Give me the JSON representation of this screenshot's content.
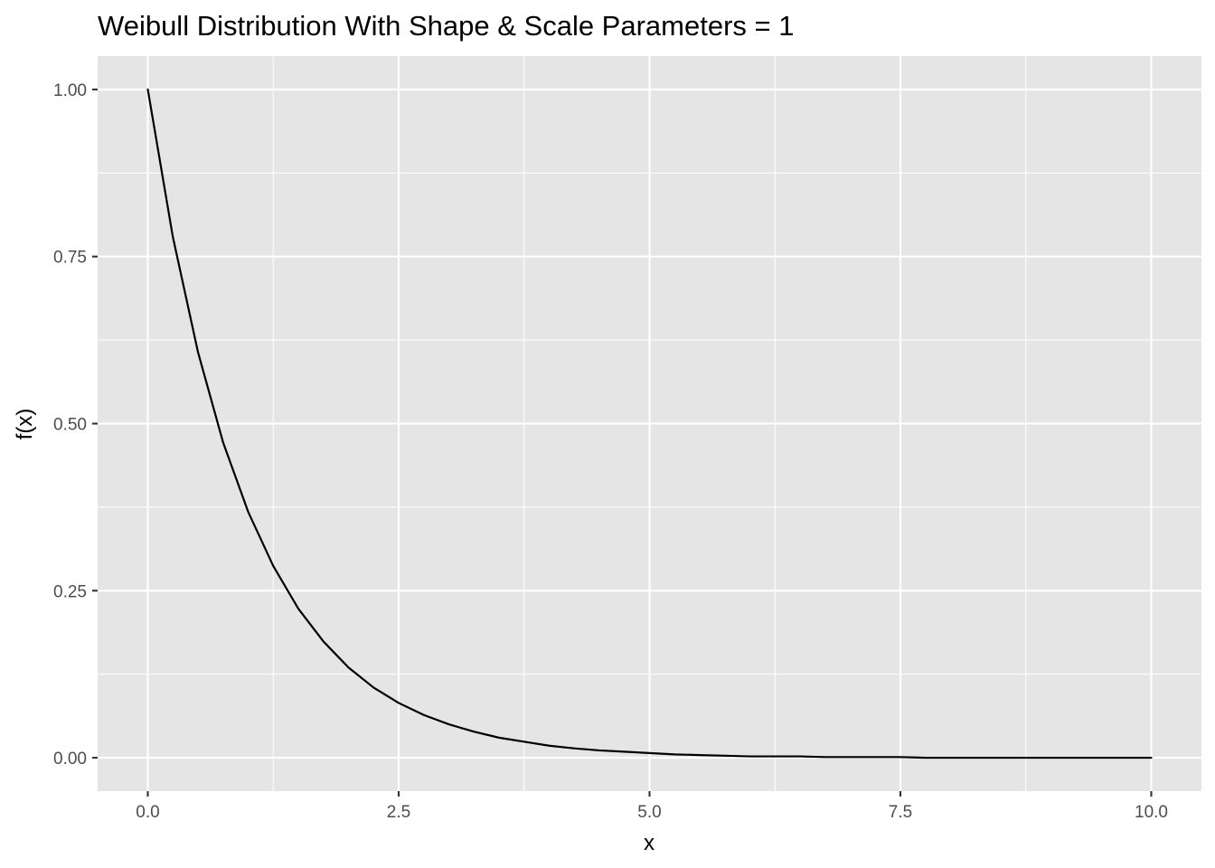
{
  "chart_data": {
    "type": "line",
    "title": "Weibull Distribution With Shape & Scale Parameters = 1",
    "xlabel": "x",
    "ylabel": "f(x)",
    "xlim": [
      -0.5,
      10.5
    ],
    "ylim": [
      -0.05,
      1.05
    ],
    "x_ticks": [
      0,
      2.5,
      5,
      7.5,
      10
    ],
    "x_tick_labels": [
      "0.0",
      "2.5",
      "5.0",
      "7.5",
      "10.0"
    ],
    "y_ticks": [
      0,
      0.25,
      0.5,
      0.75,
      1
    ],
    "y_tick_labels": [
      "0.00",
      "0.25",
      "0.50",
      "0.75",
      "1.00"
    ],
    "grid": true,
    "legend": "none",
    "series": [
      {
        "line_color": "#000000",
        "x": [
          0,
          0.25,
          0.5,
          0.75,
          1,
          1.25,
          1.5,
          1.75,
          2,
          2.25,
          2.5,
          2.75,
          3,
          3.25,
          3.5,
          3.75,
          4,
          4.25,
          4.5,
          4.75,
          5,
          5.25,
          5.5,
          5.75,
          6,
          6.25,
          6.5,
          6.75,
          7,
          7.25,
          7.5,
          7.75,
          8,
          8.25,
          8.5,
          8.75,
          9,
          9.25,
          9.5,
          9.75,
          10
        ],
        "values": [
          1.0,
          0.779,
          0.607,
          0.472,
          0.368,
          0.287,
          0.223,
          0.174,
          0.135,
          0.105,
          0.082,
          0.064,
          0.05,
          0.039,
          0.03,
          0.024,
          0.018,
          0.014,
          0.011,
          0.009,
          0.007,
          0.005,
          0.004,
          0.003,
          0.002,
          0.002,
          0.002,
          0.001,
          0.001,
          0.001,
          0.001,
          0.0,
          0.0,
          0.0,
          0.0,
          0.0,
          0.0,
          0.0,
          0.0,
          0.0,
          0.0
        ]
      }
    ]
  },
  "colors": {
    "panel_background": "#e5e5e5",
    "grid": "#ffffff",
    "tick_label": "#4d4d4d",
    "title": "#000000"
  }
}
